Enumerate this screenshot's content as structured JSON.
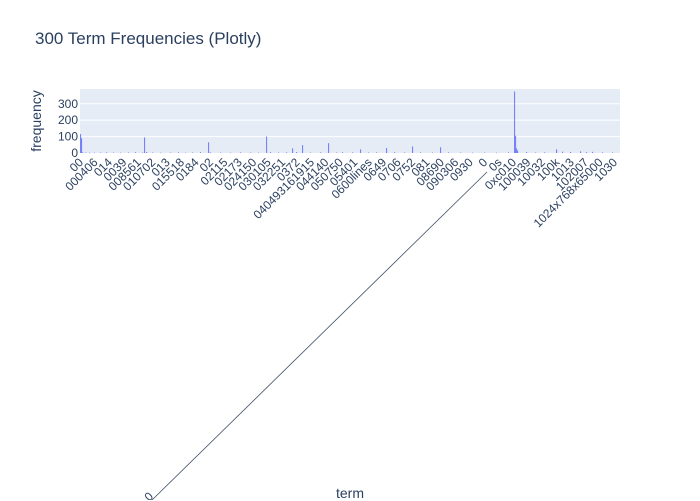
{
  "chart_data": {
    "type": "bar",
    "title": "300 Term Frequencies (Plotly)",
    "xlabel": "term",
    "ylabel": "frequency",
    "ylim": [
      0,
      390
    ],
    "yticks": [
      0,
      100,
      200,
      300
    ],
    "grid": true,
    "legend": "none",
    "colors": {
      "bar": "#636efa",
      "plot_bg": "#e5ecf6",
      "grid": "#ffffff",
      "text": "#2a3f5f"
    },
    "tick_labels": [
      "00",
      "000406",
      "014",
      "0039",
      "008561",
      "010702",
      "013",
      "015518",
      "0184",
      "02",
      "02115",
      "02173",
      "024150",
      "030105",
      "032251",
      "0372",
      "040493161915",
      "044140",
      "050750",
      "05401",
      "0600lines",
      "0649",
      "0706",
      "0752",
      "081",
      "08690",
      "090306",
      "0930",
      "0",
      "0s",
      "0xc010",
      "100039",
      "10032",
      "100k",
      "1013",
      "102007",
      "1024x768x65000",
      "1030"
    ],
    "stray_tick_label": "0",
    "bars": [
      {
        "x": 0,
        "value": 115
      },
      {
        "x": 1,
        "value": 90
      },
      {
        "x": 2,
        "value": 4
      },
      {
        "x": 5,
        "value": 3
      },
      {
        "x": 9,
        "value": 2
      },
      {
        "x": 14,
        "value": 2
      },
      {
        "x": 20,
        "value": 3
      },
      {
        "x": 26,
        "value": 4
      },
      {
        "x": 33,
        "value": 3
      },
      {
        "x": 40,
        "value": 2
      },
      {
        "x": 48,
        "value": 3
      },
      {
        "x": 55,
        "value": 5
      },
      {
        "x": 62,
        "value": 3
      },
      {
        "x": 64,
        "value": 95
      },
      {
        "x": 66,
        "value": 6
      },
      {
        "x": 72,
        "value": 3
      },
      {
        "x": 80,
        "value": 2
      },
      {
        "x": 90,
        "value": 3
      },
      {
        "x": 98,
        "value": 4
      },
      {
        "x": 105,
        "value": 2
      },
      {
        "x": 112,
        "value": 3
      },
      {
        "x": 120,
        "value": 5
      },
      {
        "x": 128,
        "value": 65
      },
      {
        "x": 130,
        "value": 4
      },
      {
        "x": 140,
        "value": 3
      },
      {
        "x": 150,
        "value": 2
      },
      {
        "x": 160,
        "value": 4
      },
      {
        "x": 170,
        "value": 3
      },
      {
        "x": 178,
        "value": 2
      },
      {
        "x": 186,
        "value": 100
      },
      {
        "x": 190,
        "value": 5
      },
      {
        "x": 198,
        "value": 3
      },
      {
        "x": 206,
        "value": 4
      },
      {
        "x": 212,
        "value": 28
      },
      {
        "x": 216,
        "value": 6
      },
      {
        "x": 222,
        "value": 48
      },
      {
        "x": 230,
        "value": 3
      },
      {
        "x": 240,
        "value": 4
      },
      {
        "x": 248,
        "value": 60
      },
      {
        "x": 256,
        "value": 3
      },
      {
        "x": 262,
        "value": 5
      },
      {
        "x": 272,
        "value": 4
      },
      {
        "x": 280,
        "value": 22
      },
      {
        "x": 288,
        "value": 3
      },
      {
        "x": 296,
        "value": 4
      },
      {
        "x": 306,
        "value": 30
      },
      {
        "x": 314,
        "value": 5
      },
      {
        "x": 324,
        "value": 3
      },
      {
        "x": 332,
        "value": 40
      },
      {
        "x": 340,
        "value": 4
      },
      {
        "x": 352,
        "value": 3
      },
      {
        "x": 360,
        "value": 35
      },
      {
        "x": 368,
        "value": 4
      },
      {
        "x": 380,
        "value": 3
      },
      {
        "x": 392,
        "value": 2
      },
      {
        "x": 404,
        "value": 3
      },
      {
        "x": 416,
        "value": 2
      },
      {
        "x": 428,
        "value": 4
      },
      {
        "x": 434,
        "value": 375
      },
      {
        "x": 435,
        "value": 105
      },
      {
        "x": 436,
        "value": 28
      },
      {
        "x": 437,
        "value": 15
      },
      {
        "x": 446,
        "value": 5
      },
      {
        "x": 455,
        "value": 3
      },
      {
        "x": 464,
        "value": 4
      },
      {
        "x": 476,
        "value": 22
      },
      {
        "x": 482,
        "value": 8
      },
      {
        "x": 490,
        "value": 6
      },
      {
        "x": 500,
        "value": 10
      },
      {
        "x": 506,
        "value": 5
      },
      {
        "x": 512,
        "value": 7
      },
      {
        "x": 522,
        "value": 4
      },
      {
        "x": 532,
        "value": 3
      }
    ]
  }
}
